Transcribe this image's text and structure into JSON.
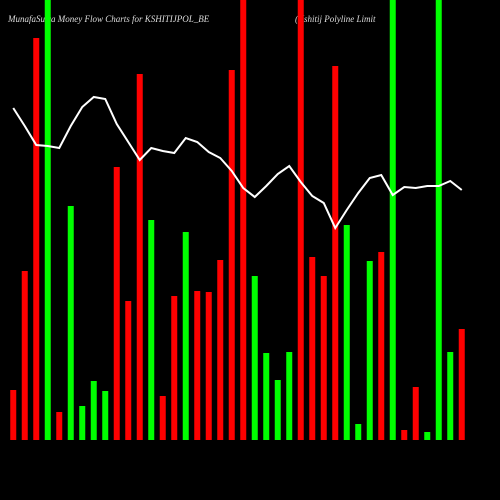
{
  "chart_data": {
    "type": "bar",
    "title": "MunafaSutra  Money Flow  Charts for KSHITIJPOL_BE",
    "subtitle": "(Kshitij Polyline   Limit",
    "categories": [
      null,
      null,
      null,
      null,
      null,
      null,
      null,
      null,
      null,
      null,
      null,
      null,
      null,
      null,
      null,
      null,
      null,
      null,
      null,
      null,
      null,
      null,
      null,
      null,
      null,
      null,
      null,
      null,
      null,
      null,
      null,
      null,
      null,
      null,
      null,
      null,
      null,
      null,
      null,
      null
    ],
    "values": [
      50,
      169,
      402,
      440,
      28,
      234,
      34,
      59,
      49,
      273,
      139,
      366,
      220,
      44,
      144,
      208,
      149,
      148,
      180,
      370,
      440,
      164,
      87,
      60,
      88,
      440,
      183,
      164,
      374,
      215,
      16,
      179,
      188,
      440,
      10,
      53,
      8,
      440,
      88,
      111
    ],
    "colors": [
      "#ff0000",
      "#ff0000",
      "#ff0000",
      "#00ff00",
      "#ff0000",
      "#00ff00",
      "#00ff00",
      "#00ff00",
      "#00ff00",
      "#ff0000",
      "#ff0000",
      "#ff0000",
      "#00ff00",
      "#ff0000",
      "#ff0000",
      "#00ff00",
      "#ff0000",
      "#ff0000",
      "#ff0000",
      "#ff0000",
      "#ff0000",
      "#00ff00",
      "#00ff00",
      "#00ff00",
      "#00ff00",
      "#ff0000",
      "#ff0000",
      "#ff0000",
      "#ff0000",
      "#00ff00",
      "#00ff00",
      "#00ff00",
      "#ff0000",
      "#00ff00",
      "#ff0000",
      "#ff0000",
      "#00ff00",
      "#00ff00",
      "#00ff00",
      "#ff0000"
    ],
    "line": {
      "color": "#ffffff",
      "values": [
        332,
        314,
        295,
        294,
        292,
        314,
        333,
        343,
        341,
        316,
        298,
        280,
        292,
        289,
        287,
        302,
        298,
        288,
        282,
        269,
        252,
        243,
        254,
        266,
        274,
        258,
        244,
        237,
        212,
        230,
        247,
        262,
        265,
        245,
        253,
        252,
        254,
        254,
        259,
        250
      ]
    },
    "ylim": [
      0,
      440
    ]
  }
}
